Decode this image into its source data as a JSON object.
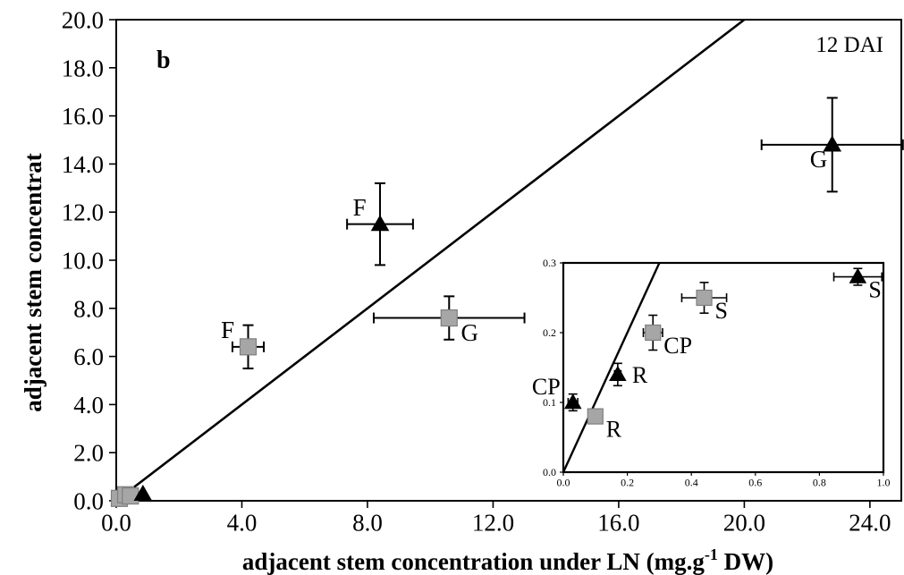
{
  "chart_data": [
    {
      "type": "scatter",
      "panel_label": "b",
      "annotation": "12 DAI",
      "xlabel_main": "adjacent stem concentration under LN (mg.g",
      "xlabel_sup": "-1",
      "xlabel_end": " DW)",
      "ylabel": "adjacent stem concentrat",
      "xlim": [
        0,
        25
      ],
      "ylim": [
        0,
        20
      ],
      "x_ticks": [
        "0.0",
        "4.0",
        "8.0",
        "12.0",
        "16.0",
        "20.0",
        "24.0"
      ],
      "y_ticks": [
        "0.0",
        "2.0",
        "4.0",
        "6.0",
        "8.0",
        "10.0",
        "12.0",
        "14.0",
        "16.0",
        "18.0",
        "20.0"
      ],
      "reference_line": {
        "x": [
          0,
          20
        ],
        "y": [
          0,
          20
        ]
      },
      "series": [
        {
          "marker": "square",
          "color": "#a6a6a6",
          "points": [
            {
              "label": "F",
              "x": 4.2,
              "y": 6.4,
              "xerr": 0.5,
              "yerr": 0.9,
              "label_side": "upper-left"
            },
            {
              "label": "G",
              "x": 10.6,
              "y": 7.6,
              "xerr": 2.4,
              "yerr": 0.9,
              "label_side": "lower-right"
            },
            {
              "label": "",
              "x": 0.1,
              "y": 0.1,
              "xerr": 0,
              "yerr": 0
            },
            {
              "label": "",
              "x": 0.3,
              "y": 0.25,
              "xerr": 0,
              "yerr": 0
            },
            {
              "label": "",
              "x": 0.45,
              "y": 0.2,
              "xerr": 0,
              "yerr": 0
            }
          ]
        },
        {
          "marker": "triangle",
          "color": "#000000",
          "points": [
            {
              "label": "F",
              "x": 8.4,
              "y": 11.5,
              "xerr": 1.05,
              "yerr": 1.7,
              "label_side": "upper-left"
            },
            {
              "label": "G",
              "x": 22.8,
              "y": 14.8,
              "xerr": 2.25,
              "yerr": 1.95,
              "label_side": "lower-left"
            },
            {
              "label": "",
              "x": 0.85,
              "y": 0.28,
              "xerr": 0,
              "yerr": 0
            }
          ]
        }
      ]
    },
    {
      "type": "scatter",
      "role": "inset",
      "xlim": [
        0,
        1
      ],
      "ylim": [
        0,
        0.3
      ],
      "x_ticks": [
        "0.0",
        "0.2",
        "0.4",
        "0.6",
        "0.8",
        "1.0"
      ],
      "y_ticks": [
        "0.0",
        "0.1",
        "0.2",
        "0.3"
      ],
      "reference_line": {
        "x": [
          0,
          0.3
        ],
        "y": [
          0,
          0.3
        ]
      },
      "series": [
        {
          "marker": "square",
          "color": "#a6a6a6",
          "points": [
            {
              "label": "R",
              "x": 0.1,
              "y": 0.08,
              "xerr": 0,
              "yerr": 0,
              "label_side": "lower-right"
            },
            {
              "label": "CP",
              "x": 0.28,
              "y": 0.2,
              "xerr": 0.03,
              "yerr": 0.025,
              "label_side": "lower-right"
            },
            {
              "label": "S",
              "x": 0.44,
              "y": 0.25,
              "xerr": 0.07,
              "yerr": 0.022,
              "label_side": "lower-right"
            }
          ]
        },
        {
          "marker": "triangle",
          "color": "#000000",
          "points": [
            {
              "label": "CP",
              "x": 0.03,
              "y": 0.1,
              "xerr": 0.015,
              "yerr": 0.012,
              "label_side": "upper-left"
            },
            {
              "label": "R",
              "x": 0.17,
              "y": 0.14,
              "xerr": 0.01,
              "yerr": 0.016,
              "label_side": "right"
            },
            {
              "label": "S",
              "x": 0.92,
              "y": 0.28,
              "xerr": 0.075,
              "yerr": 0.012,
              "label_side": "lower-right"
            }
          ]
        }
      ]
    }
  ]
}
